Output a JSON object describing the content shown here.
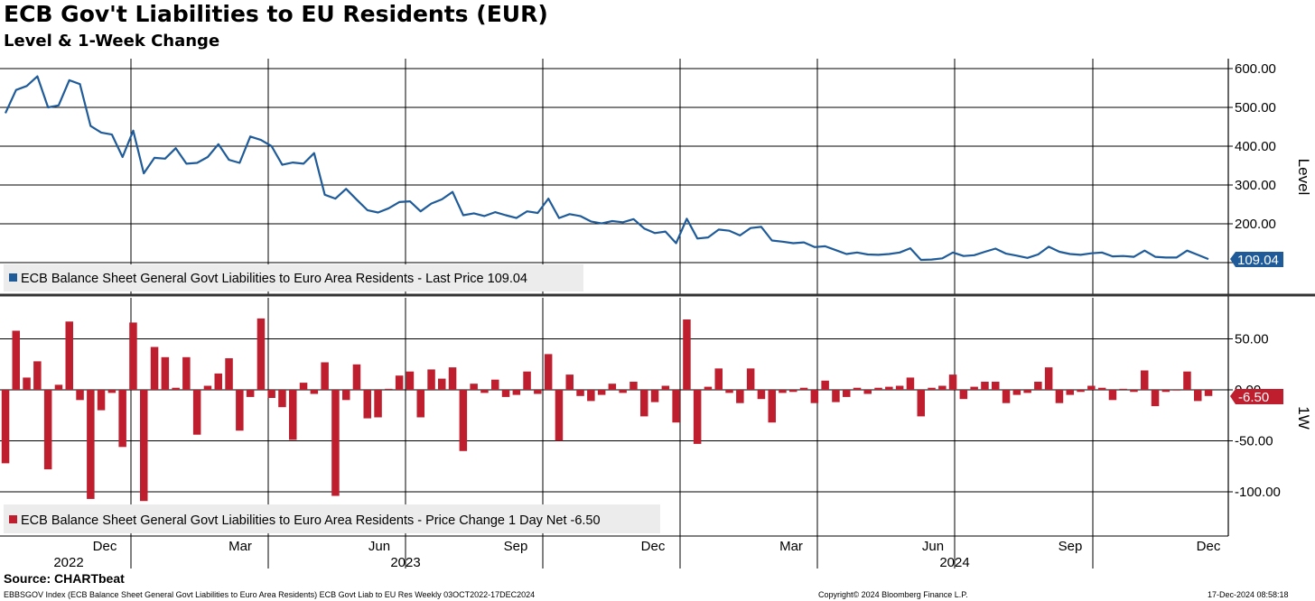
{
  "header": {
    "title": "ECB Gov't Liabilities to EU Residents (EUR)",
    "subtitle": "Level & 1-Week Change"
  },
  "footer": {
    "source": "Source: CHARTbeat",
    "description": "EBBSGOV Index (ECB Balance Sheet General Govt Liabilities to Euro Area Residents) ECB Govt Liab to EU Res  Weekly 03OCT2022-17DEC2024",
    "copyright": "Copyright© 2024 Bloomberg Finance L.P.",
    "timestamp": "17-Dec-2024 08:58:18"
  },
  "colors": {
    "level_line": "#1f5b99",
    "change_bar": "#be1e2d",
    "level_badge": "#1f5b99",
    "change_badge": "#be1e2d"
  },
  "chart_data": [
    {
      "type": "line",
      "name": "level",
      "axis_label": "Level",
      "legend": "ECB Balance Sheet General Govt Liabilities to Euro Area Residents - Last Price 109.04",
      "last_value_label": "109.04",
      "ylim": [
        0,
        630
      ],
      "yticks": [
        100,
        200,
        300,
        400,
        500,
        600
      ],
      "ytick_labels": [
        "100.00",
        "200.00",
        "300.00",
        "400.00",
        "500.00",
        "600.00"
      ],
      "grid": true,
      "values": [
        485,
        545,
        555,
        580,
        500,
        505,
        570,
        560,
        452,
        435,
        430,
        372,
        440,
        330,
        370,
        368,
        395,
        355,
        357,
        372,
        405,
        365,
        357,
        425,
        416,
        400,
        352,
        358,
        355,
        382,
        275,
        265,
        290,
        262,
        235,
        229,
        240,
        256,
        258,
        232,
        252,
        263,
        282,
        222,
        227,
        220,
        230,
        222,
        215,
        232,
        228,
        265,
        215,
        225,
        220,
        206,
        201,
        207,
        204,
        212,
        188,
        176,
        180,
        150,
        213,
        162,
        165,
        185,
        182,
        170,
        189,
        192,
        157,
        154,
        150,
        152,
        140,
        142,
        132,
        122,
        126,
        121,
        120,
        122,
        126,
        137,
        107,
        108,
        111,
        126,
        117,
        119,
        128,
        136,
        123,
        118,
        112,
        121,
        141,
        128,
        122,
        120,
        124,
        126,
        116,
        117,
        115,
        131,
        115,
        113,
        113,
        131,
        120,
        109
      ]
    },
    {
      "type": "bar",
      "name": "change",
      "axis_label": "1W",
      "legend": "ECB Balance Sheet General Govt Liabilities to Euro Area Residents - Price Change 1 Day Net -6.50",
      "last_value_label": "-6.50",
      "ylim": [
        -140,
        90
      ],
      "yticks": [
        -100,
        -50,
        0,
        50
      ],
      "ytick_labels": [
        "-100.00",
        "-50.00",
        "0.00",
        "50.00"
      ],
      "grid": true,
      "values": [
        -72,
        58,
        12,
        28,
        -78,
        5,
        67,
        -10,
        -107,
        -20,
        -3,
        -56,
        66,
        -109,
        42,
        32,
        2,
        32,
        -44,
        4,
        16,
        31,
        -40,
        -7,
        70,
        -8,
        -17,
        -49,
        7,
        -4,
        27,
        -104,
        -10,
        25,
        -28,
        -27,
        1,
        14,
        18,
        -27,
        20,
        11,
        22,
        -60,
        6,
        -3,
        10,
        -7,
        -5,
        18,
        -4,
        35,
        -50,
        15,
        -6,
        -11,
        -5,
        6,
        -3,
        8,
        -26,
        -12,
        4,
        -32,
        69,
        -53,
        3,
        21,
        -3,
        -13,
        21,
        -9,
        -32,
        -3,
        -2,
        2,
        -13,
        9,
        -12,
        -7,
        2,
        -4,
        2,
        3,
        4,
        12,
        -26,
        2,
        4,
        15,
        -9,
        3,
        8,
        8,
        -13,
        -5,
        -3,
        8,
        22,
        -13,
        -5,
        -2,
        4,
        2,
        -10,
        1,
        -2,
        19,
        -16,
        -2,
        0,
        18,
        -11,
        -6
      ]
    }
  ],
  "x_axis": {
    "month_labels": [
      "Dec",
      "Mar",
      "Jun",
      "Sep",
      "Dec",
      "Mar",
      "Jun",
      "Sep",
      "Dec"
    ],
    "year_labels": [
      "2022",
      "2023",
      "2024"
    ],
    "range": [
      "03OCT2022",
      "17DEC2024"
    ]
  }
}
